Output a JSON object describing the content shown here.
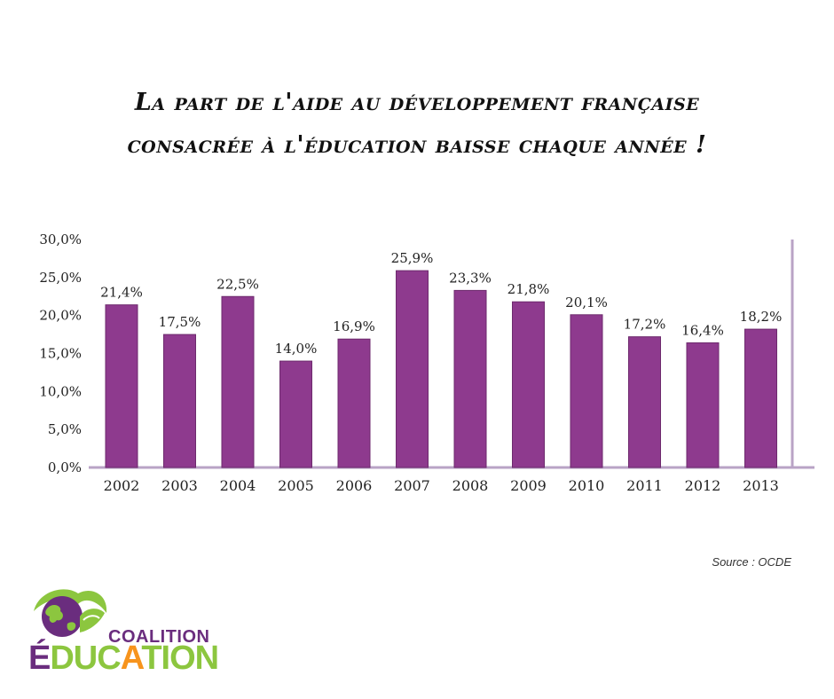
{
  "title_line1": "La part de l'aide au développement française",
  "title_line2": "consacrée à l'éducation baisse chaque année  !",
  "source": "Source : OCDE",
  "logo": {
    "line1": "COALITION",
    "line2_parts": [
      {
        "text": "É",
        "color": "#6a2d7e"
      },
      {
        "text": "DUC",
        "color": "#8cc63f"
      },
      {
        "text": "A",
        "color": "#f7941d"
      },
      {
        "text": "TION",
        "color": "#8cc63f"
      }
    ]
  },
  "colors": {
    "bar": "#8e3a8e",
    "axis": "#b9a3c6"
  },
  "chart_data": {
    "type": "bar",
    "categories": [
      "2002",
      "2003",
      "2004",
      "2005",
      "2006",
      "2007",
      "2008",
      "2009",
      "2010",
      "2011",
      "2012",
      "2013"
    ],
    "values": [
      21.4,
      17.5,
      22.5,
      14.0,
      16.9,
      25.9,
      23.3,
      21.8,
      20.1,
      17.2,
      16.4,
      18.2
    ],
    "value_labels": [
      "21,4%",
      "17,5%",
      "22,5%",
      "14,0%",
      "16,9%",
      "25,9%",
      "23,3%",
      "21,8%",
      "20,1%",
      "17,2%",
      "16,4%",
      "18,2%"
    ],
    "ylim": [
      0,
      30
    ],
    "yticks": [
      0,
      5,
      10,
      15,
      20,
      25,
      30
    ],
    "ytick_labels": [
      "0,0%",
      "5,0%",
      "10,0%",
      "15,0%",
      "20,0%",
      "25,0%",
      "30,0%"
    ],
    "title": "",
    "xlabel": "",
    "ylabel": "",
    "grid": false
  }
}
